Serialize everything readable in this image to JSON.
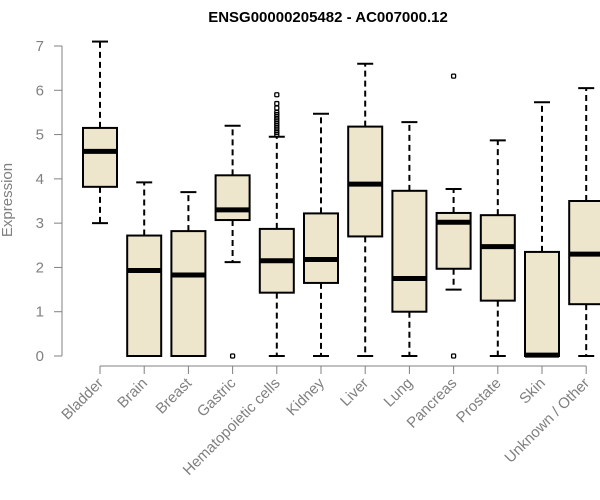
{
  "chart_data": {
    "type": "box",
    "title": "ENSG00000205482 - AC007000.12",
    "xlabel": "",
    "ylabel": "Expression",
    "ylim": [
      0,
      7
    ],
    "yticks": [
      0,
      1,
      2,
      3,
      4,
      5,
      6,
      7
    ],
    "box_color": "#ede6cc",
    "categories": [
      "Bladder",
      "Brain",
      "Breast",
      "Gastric",
      "Hematopoietic cells",
      "Kidney",
      "Liver",
      "Lung",
      "Pancreas",
      "Prostate",
      "Skin",
      "Unknown / Other"
    ],
    "boxes": [
      {
        "name": "Bladder",
        "whisker_low": 3.0,
        "q1": 3.82,
        "median": 4.62,
        "q3": 5.15,
        "whisker_high": 7.1,
        "outliers": []
      },
      {
        "name": "Brain",
        "whisker_low": 0.0,
        "q1": 0.0,
        "median": 1.93,
        "q3": 2.72,
        "whisker_high": 3.92,
        "outliers": []
      },
      {
        "name": "Breast",
        "whisker_low": 0.0,
        "q1": 0.0,
        "median": 1.83,
        "q3": 2.82,
        "whisker_high": 3.7,
        "outliers": []
      },
      {
        "name": "Gastric",
        "whisker_low": 2.12,
        "q1": 3.07,
        "median": 3.3,
        "q3": 4.08,
        "whisker_high": 5.2,
        "outliers": [
          0.0
        ]
      },
      {
        "name": "Hematopoietic cells",
        "whisker_low": 0.0,
        "q1": 1.43,
        "median": 2.15,
        "q3": 2.87,
        "whisker_high": 4.95,
        "outliers": [
          5.0,
          5.05,
          5.1,
          5.15,
          5.2,
          5.25,
          5.3,
          5.35,
          5.4,
          5.45,
          5.5,
          5.6,
          5.7,
          5.9
        ]
      },
      {
        "name": "Kidney",
        "whisker_low": 0.0,
        "q1": 1.65,
        "median": 2.18,
        "q3": 3.22,
        "whisker_high": 5.47,
        "outliers": []
      },
      {
        "name": "Liver",
        "whisker_low": 0.0,
        "q1": 2.7,
        "median": 3.88,
        "q3": 5.18,
        "whisker_high": 6.6,
        "outliers": []
      },
      {
        "name": "Lung",
        "whisker_low": 0.0,
        "q1": 1.0,
        "median": 1.75,
        "q3": 3.73,
        "whisker_high": 5.28,
        "outliers": []
      },
      {
        "name": "Pancreas",
        "whisker_low": 1.5,
        "q1": 1.97,
        "median": 3.02,
        "q3": 3.23,
        "whisker_high": 3.77,
        "outliers": [
          0.0,
          6.32
        ]
      },
      {
        "name": "Prostate",
        "whisker_low": 0.0,
        "q1": 1.25,
        "median": 2.47,
        "q3": 3.18,
        "whisker_high": 4.87,
        "outliers": []
      },
      {
        "name": "Skin",
        "whisker_low": 0.0,
        "q1": 0.0,
        "median": 0.02,
        "q3": 2.35,
        "whisker_high": 5.73,
        "outliers": []
      },
      {
        "name": "Unknown / Other",
        "whisker_low": 0.0,
        "q1": 1.17,
        "median": 2.3,
        "q3": 3.5,
        "whisker_high": 6.05,
        "outliers": []
      }
    ]
  }
}
